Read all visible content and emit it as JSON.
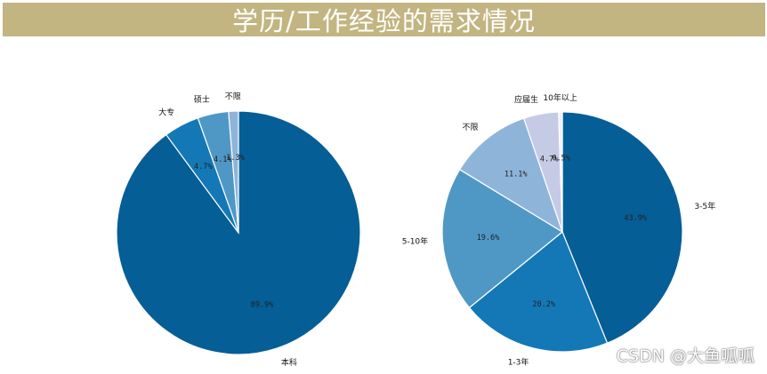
{
  "header": {
    "title": "学历/工作经验的需求情况"
  },
  "watermark": "CSDN @大鱼呱呱",
  "chart_data": [
    {
      "type": "pie",
      "start_angle_deg": 90,
      "direction": "clockwise",
      "slices": [
        {
          "label": "本科",
          "pct_text": "89.9%",
          "value": 89.9,
          "color": "#065e96"
        },
        {
          "label": "大专",
          "pct_text": "4.7%",
          "value": 4.7,
          "color": "#1478b6"
        },
        {
          "label": "硕士",
          "pct_text": "4.1%",
          "value": 4.1,
          "color": "#4f98c6"
        },
        {
          "label": "不限",
          "pct_text": "1.3%",
          "value": 1.3,
          "color": "#8fb4d9"
        }
      ]
    },
    {
      "type": "pie",
      "start_angle_deg": 90,
      "direction": "clockwise",
      "slices": [
        {
          "label": "3-5年",
          "pct_text": "43.9%",
          "value": 43.9,
          "color": "#065e96"
        },
        {
          "label": "1-3年",
          "pct_text": "20.2%",
          "value": 20.2,
          "color": "#1478b6"
        },
        {
          "label": "5-10年",
          "pct_text": "19.6%",
          "value": 19.6,
          "color": "#4f98c6"
        },
        {
          "label": "不限",
          "pct_text": "11.1%",
          "value": 11.1,
          "color": "#8fb4d9"
        },
        {
          "label": "应届生",
          "pct_text": "4.7%",
          "value": 4.7,
          "color": "#c5cbe5"
        },
        {
          "label": "10年以上",
          "pct_text": "0.5%",
          "value": 0.5,
          "color": "#edeff7"
        }
      ]
    }
  ]
}
